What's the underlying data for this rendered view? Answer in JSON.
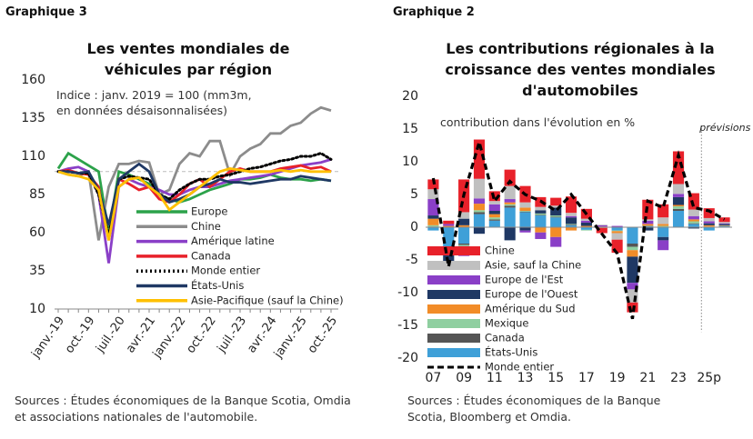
{
  "chart_data": [
    {
      "type": "line",
      "label": "Graphique 3",
      "title": "Les ventes mondiales de véhicules par région",
      "subtitle": "Indice : janv. 2019 = 100 (mm3m, en données désaisonnalisées)",
      "source": "Sources : Études économiques de la Banque Scotia, Omdia et associations nationales de l'automobile.",
      "categories": [
        "janv.-19",
        null,
        null,
        "oct.-19",
        null,
        null,
        "juil.-20",
        null,
        null,
        "avr.-21",
        null,
        null,
        "janv.-22",
        null,
        null,
        "oct.-22",
        null,
        null,
        "juil.-23",
        null,
        null,
        "avr.-24",
        null,
        null,
        "janv.-25",
        null,
        null,
        "oct.-25"
      ],
      "ylim": [
        10,
        160
      ],
      "yticks": [
        10,
        35,
        60,
        85,
        110,
        135,
        160
      ],
      "reference_line": 100,
      "series": [
        {
          "name": "Europe",
          "color": "#2ca24a",
          "style": "solid",
          "values": [
            102,
            112,
            108,
            104,
            100,
            60,
            100,
            98,
            95,
            92,
            85,
            82,
            80,
            82,
            85,
            88,
            90,
            92,
            95,
            95,
            96,
            98,
            96,
            95,
            95,
            94,
            95,
            94
          ]
        },
        {
          "name": "Chine",
          "color": "#8c8c8c",
          "style": "solid",
          "values": [
            100,
            98,
            97,
            100,
            55,
            90,
            105,
            105,
            107,
            106,
            85,
            88,
            105,
            112,
            110,
            120,
            120,
            98,
            110,
            115,
            118,
            125,
            125,
            130,
            132,
            138,
            142,
            140
          ]
        },
        {
          "name": "Amérique latine",
          "color": "#8a3fc7",
          "style": "solid",
          "values": [
            100,
            102,
            103,
            100,
            85,
            40,
            90,
            95,
            92,
            90,
            88,
            85,
            85,
            88,
            90,
            90,
            92,
            94,
            95,
            96,
            97,
            98,
            100,
            102,
            104,
            105,
            106,
            108
          ]
        },
        {
          "name": "Canada",
          "color": "#e8212a",
          "style": "solid",
          "values": [
            100,
            101,
            99,
            98,
            90,
            55,
            95,
            92,
            88,
            90,
            82,
            80,
            85,
            92,
            95,
            90,
            95,
            100,
            102,
            100,
            100,
            100,
            102,
            103,
            104,
            102,
            103,
            100
          ]
        },
        {
          "name": "Monde entier",
          "color": "#000000",
          "style": "dotted",
          "values": [
            100,
            100,
            99,
            99,
            85,
            58,
            95,
            97,
            96,
            95,
            85,
            82,
            88,
            92,
            95,
            95,
            97,
            98,
            100,
            102,
            103,
            105,
            107,
            108,
            110,
            110,
            112,
            108
          ]
        },
        {
          "name": "États-Unis",
          "color": "#1f3864",
          "style": "solid",
          "values": [
            100,
            100,
            99,
            100,
            88,
            65,
            95,
            100,
            105,
            100,
            85,
            80,
            82,
            85,
            90,
            92,
            95,
            93,
            93,
            92,
            93,
            94,
            95,
            95,
            97,
            96,
            95,
            94
          ]
        },
        {
          "name": "Asie-Pacifique (sauf la Chine)",
          "color": "#ffc000",
          "style": "solid",
          "values": [
            100,
            98,
            97,
            95,
            88,
            55,
            90,
            95,
            96,
            90,
            85,
            75,
            80,
            85,
            90,
            95,
            100,
            102,
            101,
            100,
            100,
            100,
            101,
            100,
            101,
            100,
            100,
            100
          ]
        }
      ]
    },
    {
      "type": "bar",
      "stacked": true,
      "label": "Graphique 2",
      "title": "Les contributions régionales à la croissance des ventes mondiales d'automobiles",
      "subtitle": "contribution dans l'évolution en %",
      "annotation": "prévisions",
      "source": "Sources : Études économiques de la Banque Scotia, Bloomberg et Omdia.",
      "categories": [
        "07",
        null,
        "09",
        null,
        "11",
        null,
        "13",
        null,
        "15",
        null,
        "17",
        null,
        "19",
        null,
        "21",
        null,
        "23",
        null,
        "25p",
        null
      ],
      "ylim": [
        -20,
        20
      ],
      "yticks": [
        -20,
        -15,
        -10,
        -5,
        0,
        5,
        10,
        15,
        20
      ],
      "series": [
        {
          "name": "Chine",
          "color": "#e8212a",
          "values": [
            1.5,
            0.5,
            5,
            6,
            1.5,
            2.5,
            2.5,
            1.5,
            1.2,
            2.5,
            1.5,
            -0.8,
            -2,
            -1.5,
            3,
            2,
            5,
            2.5,
            1.5,
            0.7
          ]
        },
        {
          "name": "Asie, sauf la Chine",
          "color": "#c0c0c0",
          "values": [
            1.5,
            -0.5,
            1,
            3,
            0.5,
            2,
            0.8,
            0.5,
            0.3,
            0.5,
            0.3,
            0.1,
            -1,
            -2,
            0.2,
            1,
            1.5,
            1,
            0.5,
            0.2
          ]
        },
        {
          "name": "Europe de l'Est",
          "color": "#8a3fc7",
          "values": [
            2.5,
            0.3,
            -1.5,
            0.8,
            1,
            0.5,
            -0.3,
            -1,
            -1.5,
            0.2,
            0.3,
            0.2,
            0.2,
            -1,
            0.5,
            -1.5,
            0.5,
            0.5,
            0.3,
            0.1
          ]
        },
        {
          "name": "Europe de l'Ouest",
          "color": "#1f3864",
          "values": [
            0.5,
            -2.5,
            1,
            -1,
            0.5,
            -2,
            -0.5,
            0.5,
            1.2,
            1,
            0.5,
            0,
            0,
            -4,
            -0.5,
            -0.5,
            1.2,
            -0.2,
            0.3,
            0.2
          ]
        },
        {
          "name": "Amérique du Sud",
          "color": "#f28c28",
          "values": [
            1,
            0.2,
            0.3,
            1,
            0.5,
            0.3,
            0.5,
            -0.8,
            -1.5,
            -0.5,
            0.2,
            0.1,
            -0.3,
            -1,
            0.3,
            0.3,
            0.2,
            0.3,
            0.2,
            0.1
          ]
        },
        {
          "name": "Mexique",
          "color": "#8fcfa0",
          "values": [
            0.2,
            0,
            -0.2,
            0.3,
            0.3,
            0.2,
            0.1,
            0.2,
            0.2,
            0.1,
            -0.1,
            -0.1,
            -0.1,
            -0.5,
            0,
            0.2,
            0.4,
            0.3,
            0.1,
            0
          ]
        },
        {
          "name": "Canada",
          "color": "#555555",
          "values": [
            0.1,
            -0.2,
            -0.2,
            0.3,
            0.2,
            0.3,
            0.1,
            0.1,
            0.1,
            0.1,
            0,
            0,
            0,
            -0.5,
            0,
            0,
            0.3,
            0.1,
            0,
            0
          ]
        },
        {
          "name": "États-Unis",
          "color": "#3fa0d8",
          "values": [
            -0.5,
            -3,
            -2.5,
            2,
            1,
            3,
            2.3,
            1.8,
            1.5,
            0.3,
            -0.4,
            0,
            -0.5,
            -2.5,
            0.2,
            -1.5,
            2.5,
            0.5,
            -0.5,
            0.2
          ]
        },
        {
          "name": "Monde entier",
          "color": "#000000",
          "type": "line",
          "style": "dashed",
          "values": [
            7.5,
            -6,
            5,
            13,
            4,
            7,
            5,
            4,
            2.5,
            5,
            2,
            -1,
            -4,
            -14,
            4,
            3,
            11,
            3,
            2.5,
            1.2
          ]
        }
      ]
    }
  ]
}
